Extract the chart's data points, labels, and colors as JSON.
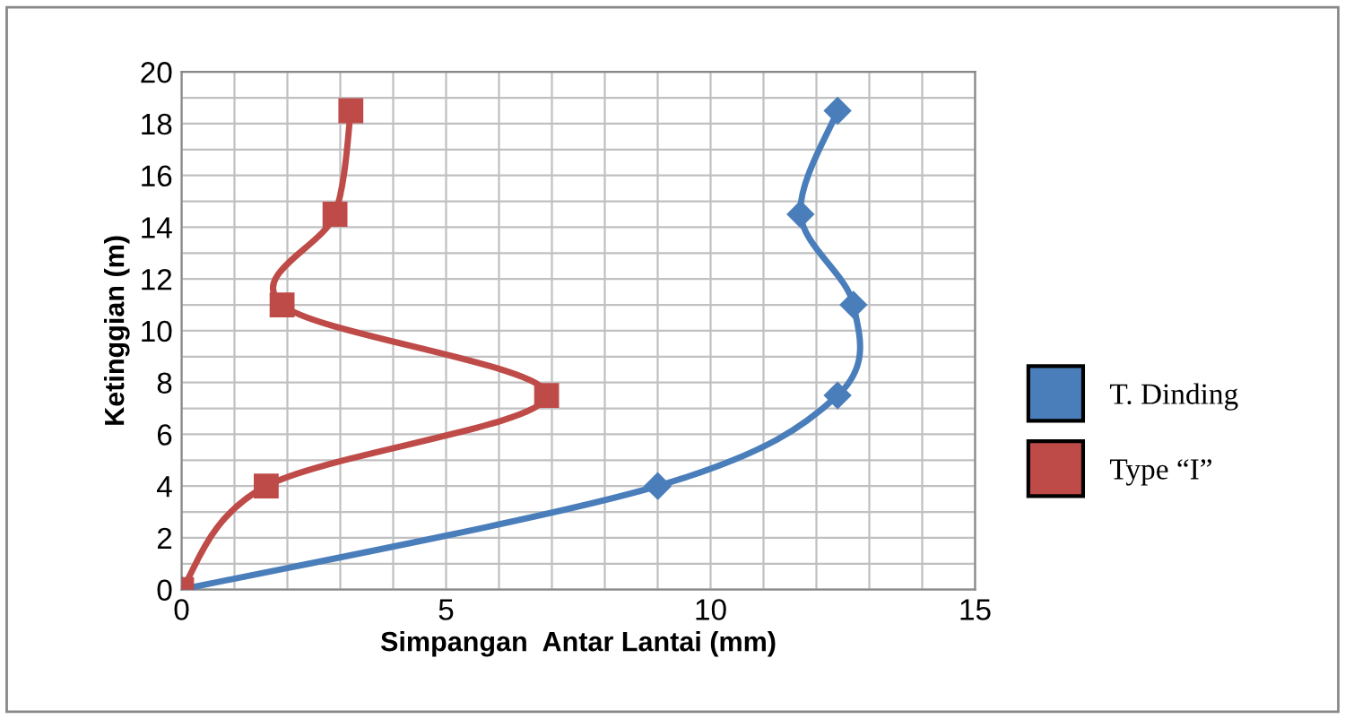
{
  "chart_data": {
    "type": "line",
    "xlabel": "Simpangan  Antar Lantai (mm)",
    "ylabel": "Ketinggian (m)",
    "xlim": [
      0,
      15
    ],
    "ylim": [
      0,
      20
    ],
    "xticks": [
      0,
      {
        "value": 1,
        "label": null
      },
      {
        "value": 2,
        "label": null
      },
      {
        "value": 3,
        "label": null
      },
      {
        "value": 4,
        "label": null
      },
      5,
      {
        "value": 6,
        "label": null
      },
      {
        "value": 7,
        "label": null
      },
      {
        "value": 8,
        "label": null
      },
      {
        "value": 9,
        "label": null
      },
      10,
      {
        "value": 11,
        "label": null
      },
      {
        "value": 12,
        "label": null
      },
      {
        "value": 13,
        "label": null
      },
      {
        "value": 14,
        "label": null
      },
      15
    ],
    "yticks": [
      0,
      {
        "value": 1,
        "label": null
      },
      2,
      {
        "value": 3,
        "label": null
      },
      4,
      {
        "value": 5,
        "label": null
      },
      6,
      {
        "value": 7,
        "label": null
      },
      8,
      {
        "value": 9,
        "label": null
      },
      10,
      {
        "value": 11,
        "label": null
      },
      12,
      {
        "value": 13,
        "label": null
      },
      14,
      {
        "value": 15,
        "label": null
      },
      16,
      {
        "value": 17,
        "label": null
      },
      18,
      {
        "value": 19,
        "label": null
      },
      20
    ],
    "grid": true,
    "legend": "right",
    "line_style": "solid",
    "series": [
      {
        "name": "T. Dinding",
        "color": "#4a7ebb",
        "marker": "diamond",
        "x": [
          0,
          9.0,
          12.4,
          12.7,
          11.7,
          12.4
        ],
        "values": [
          0,
          4,
          7.5,
          11,
          14.5,
          18.5
        ]
      },
      {
        "name": "Type “I”",
        "color": "#be4b48",
        "marker": "square",
        "x": [
          0,
          1.6,
          6.9,
          1.9,
          2.9,
          3.2
        ],
        "values": [
          0,
          4,
          7.5,
          11,
          14.5,
          18.5
        ]
      }
    ]
  }
}
